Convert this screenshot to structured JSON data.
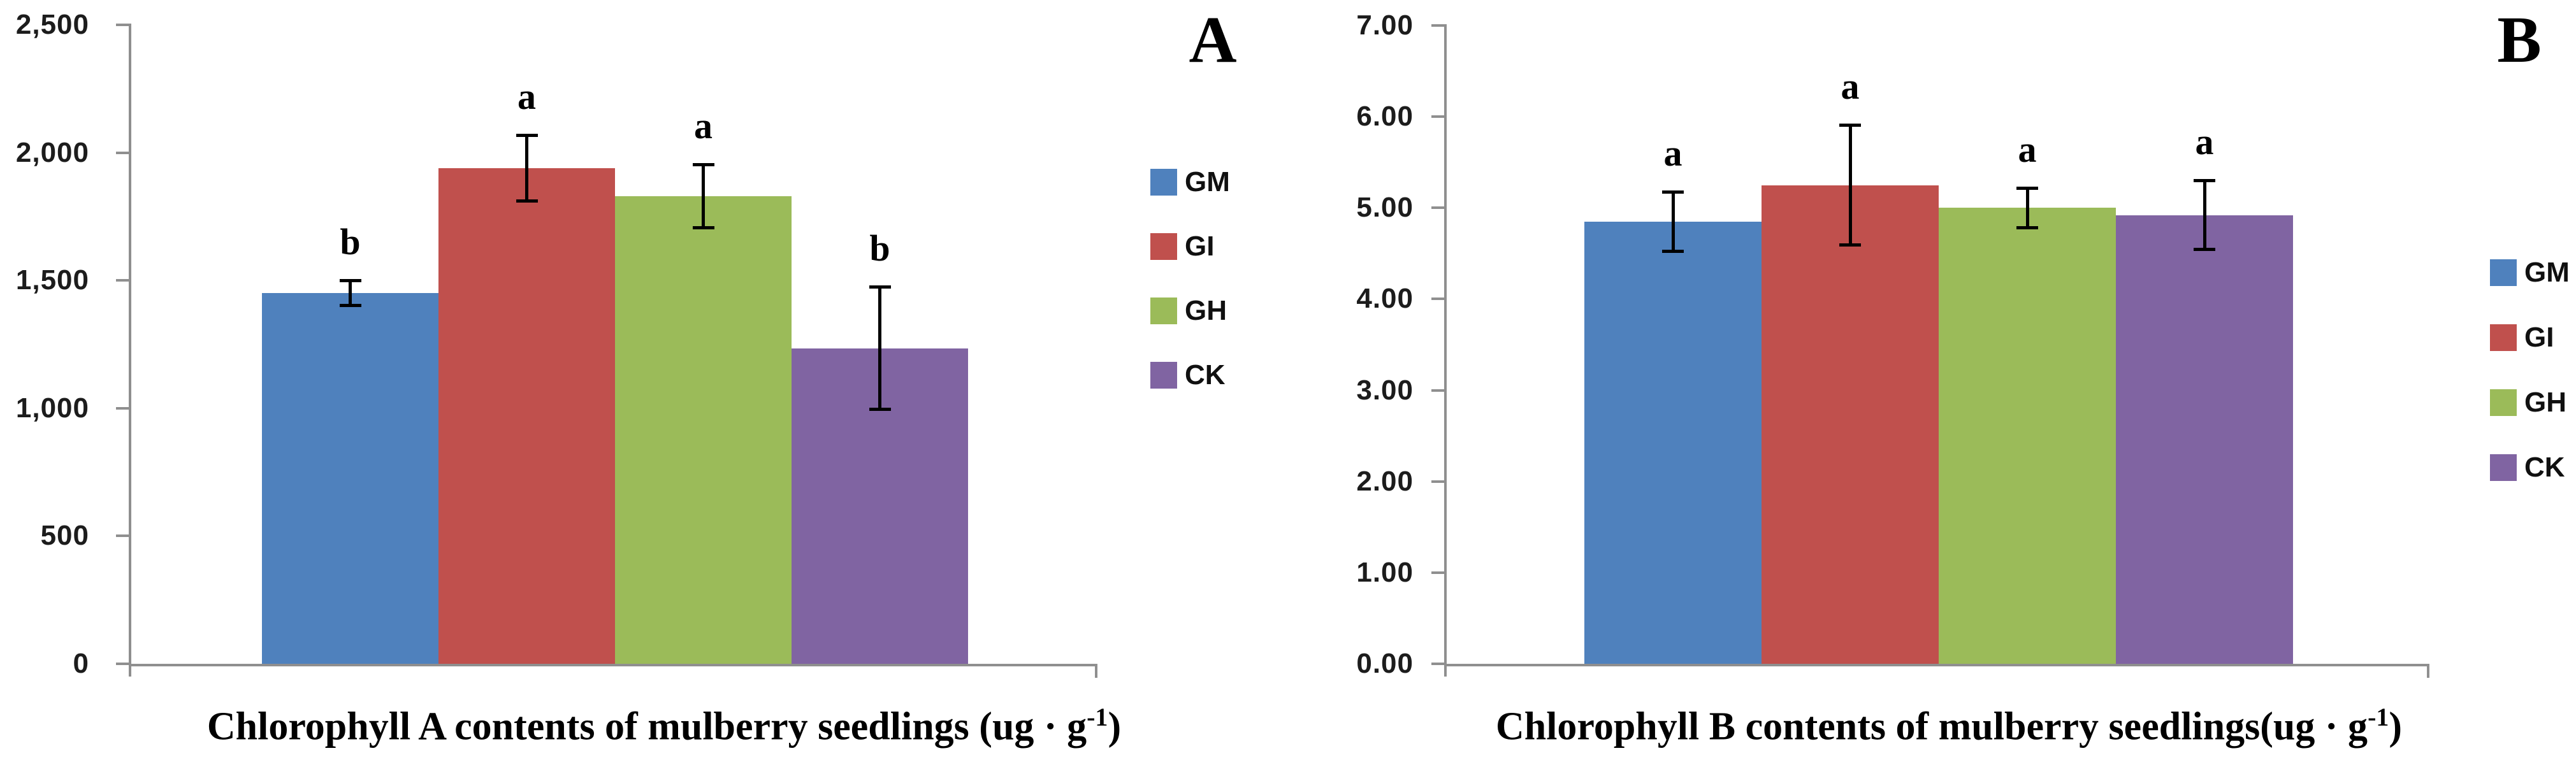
{
  "chart_data": [
    {
      "type": "bar",
      "panel_label": "A",
      "title": "Chlorophyll A contents of mulberry seedlings (ug · g-1)",
      "xlabel": {
        "prefix": "Chlorophyll A contents of mulberry seedlings (ug · g",
        "sup": "-1",
        "suffix": ")"
      },
      "ylabel": "",
      "ylim": [
        0,
        2500
      ],
      "yticks": {
        "values": [
          0,
          500,
          1000,
          1500,
          2000,
          2500
        ],
        "labels": [
          "0",
          "500",
          "1,000",
          "1,500",
          "2,000",
          "2,500"
        ]
      },
      "categories": [
        "GM",
        "GI",
        "GH",
        "CK"
      ],
      "values": [
        1450,
        1940,
        1830,
        1235
      ],
      "errors": [
        50,
        130,
        125,
        240
      ],
      "sig_letters": [
        "b",
        "a",
        "a",
        "b"
      ],
      "series_colors": [
        "#4f81bd",
        "#c0504d",
        "#9bbb59",
        "#8064a2"
      ],
      "legend": {
        "position": "right",
        "entries": [
          "GM",
          "GI",
          "GH",
          "CK"
        ]
      },
      "grid": false
    },
    {
      "type": "bar",
      "panel_label": "B",
      "title": "Chlorophyll B contents of mulberry seedlings(ug · g-1)",
      "xlabel": {
        "prefix": "Chlorophyll B contents of mulberry seedlings(ug · g",
        "sup": "-1",
        "suffix": ")"
      },
      "ylabel": "",
      "ylim": [
        0,
        7
      ],
      "yticks": {
        "values": [
          0,
          1,
          2,
          3,
          4,
          5,
          6,
          7
        ],
        "labels": [
          "0.00",
          "1.00",
          "2.00",
          "3.00",
          "4.00",
          "5.00",
          "6.00",
          "7.00"
        ]
      },
      "categories": [
        "GM",
        "GI",
        "GH",
        "CK"
      ],
      "values": [
        4.85,
        5.25,
        5.0,
        4.92
      ],
      "errors": [
        0.33,
        0.66,
        0.22,
        0.38
      ],
      "sig_letters": [
        "a",
        "a",
        "a",
        "a"
      ],
      "series_colors": [
        "#4f81bd",
        "#c0504d",
        "#9bbb59",
        "#8064a2"
      ],
      "legend": {
        "position": "right",
        "entries": [
          "GM",
          "GI",
          "GH",
          "CK"
        ]
      },
      "grid": false
    }
  ],
  "styles": {
    "axis_color": "#8f8f8f",
    "error_bar_color": "#000000",
    "background": "#ffffff"
  }
}
